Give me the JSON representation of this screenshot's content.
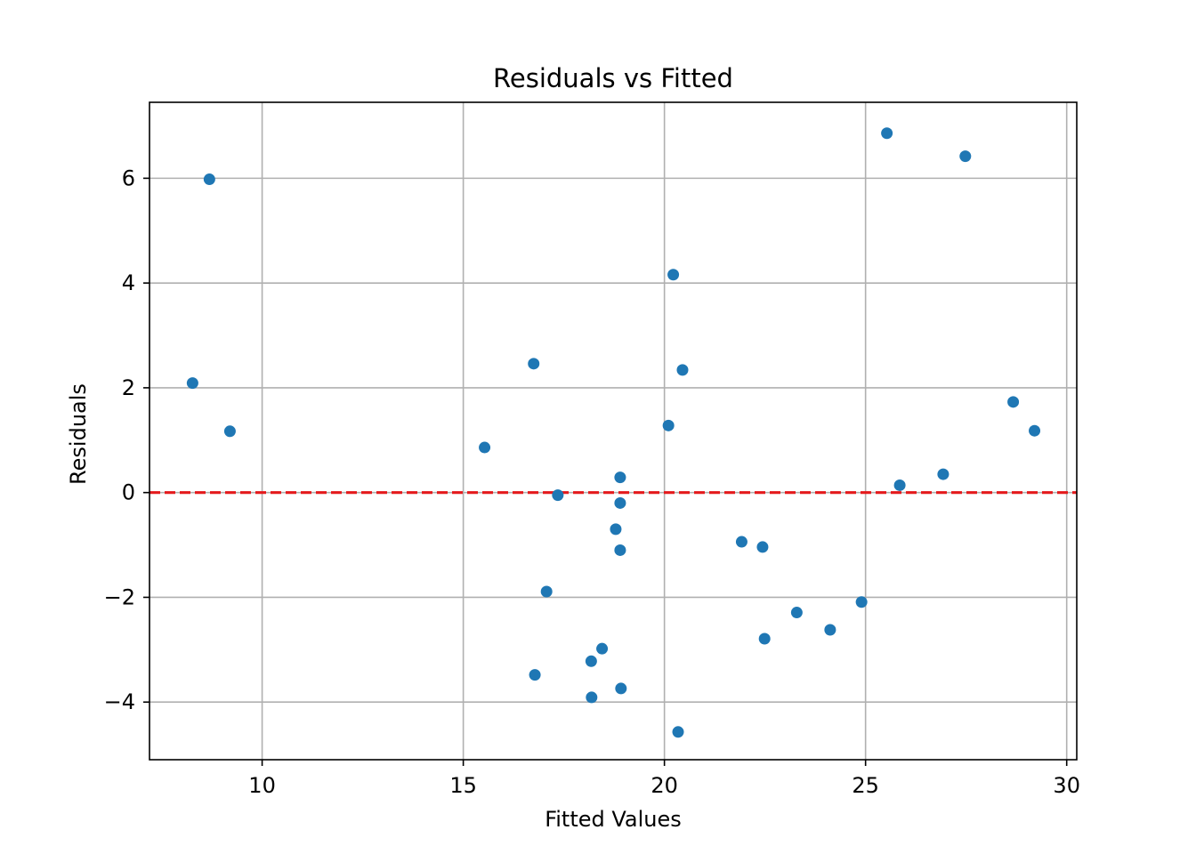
{
  "chart_data": {
    "type": "scatter",
    "title": "Residuals vs Fitted",
    "xlabel": "Fitted Values",
    "ylabel": "Residuals",
    "xlim": [
      7.2,
      30.25
    ],
    "ylim": [
      -5.1,
      7.45
    ],
    "xticks": [
      10,
      15,
      20,
      25,
      30
    ],
    "xtick_labels": [
      "10",
      "15",
      "20",
      "25",
      "30"
    ],
    "yticks": [
      -4,
      -2,
      0,
      2,
      4,
      6
    ],
    "ytick_labels": [
      "−4",
      "−2",
      "0",
      "2",
      "4",
      "6"
    ],
    "grid": true,
    "point_color": "#1f77b4",
    "reference_line": {
      "y": 0,
      "style": "dashed",
      "color": "#e41a1c"
    },
    "points": [
      {
        "x": 8.27,
        "y": 2.09
      },
      {
        "x": 8.69,
        "y": 5.98
      },
      {
        "x": 9.2,
        "y": 1.17
      },
      {
        "x": 15.53,
        "y": 0.86
      },
      {
        "x": 16.75,
        "y": 2.46
      },
      {
        "x": 16.78,
        "y": -3.48
      },
      {
        "x": 17.07,
        "y": -1.89
      },
      {
        "x": 17.35,
        "y": -0.05
      },
      {
        "x": 18.18,
        "y": -3.22
      },
      {
        "x": 18.19,
        "y": -3.91
      },
      {
        "x": 18.45,
        "y": -2.98
      },
      {
        "x": 18.79,
        "y": -0.7
      },
      {
        "x": 18.9,
        "y": 0.29
      },
      {
        "x": 18.9,
        "y": -0.2
      },
      {
        "x": 18.9,
        "y": -1.1
      },
      {
        "x": 18.92,
        "y": -3.74
      },
      {
        "x": 20.1,
        "y": 1.28
      },
      {
        "x": 20.22,
        "y": 4.16
      },
      {
        "x": 20.34,
        "y": -4.57
      },
      {
        "x": 20.45,
        "y": 2.34
      },
      {
        "x": 21.92,
        "y": -0.94
      },
      {
        "x": 22.44,
        "y": -1.04
      },
      {
        "x": 22.49,
        "y": -2.79
      },
      {
        "x": 23.29,
        "y": -2.29
      },
      {
        "x": 24.12,
        "y": -2.62
      },
      {
        "x": 24.9,
        "y": -2.09
      },
      {
        "x": 25.53,
        "y": 6.86
      },
      {
        "x": 25.85,
        "y": 0.14
      },
      {
        "x": 26.93,
        "y": 0.35
      },
      {
        "x": 27.48,
        "y": 6.42
      },
      {
        "x": 28.67,
        "y": 1.73
      },
      {
        "x": 29.2,
        "y": 1.18
      }
    ]
  }
}
